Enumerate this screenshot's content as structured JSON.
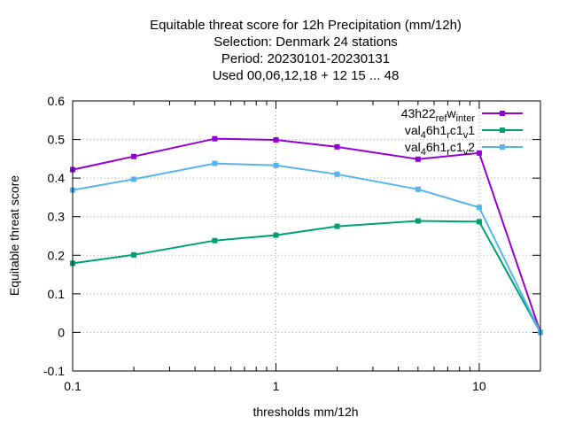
{
  "chart_data": {
    "type": "line",
    "title_lines": [
      "Equitable threat score  for 12h Precipitation (mm/12h)",
      "Selection: Denmark     24 stations",
      "Period: 20230101-20230131",
      "Used  00,06,12,18  + 12 15 ... 48"
    ],
    "xlabel": "thresholds mm/12h",
    "ylabel": "Equitable threat score",
    "x_scale": "log",
    "xlim": [
      0.1,
      20
    ],
    "ylim": [
      -0.1,
      0.6
    ],
    "x_tick_labels": [
      "0.1",
      "1",
      "10"
    ],
    "y_ticks": [
      -0.1,
      0,
      0.1,
      0.2,
      0.3,
      0.4,
      0.5,
      0.6
    ],
    "y_tick_labels": [
      "-0.1",
      "0",
      "0.1",
      "0.2",
      "0.3",
      "0.4",
      "0.5",
      "0.6"
    ],
    "grid": true,
    "legend_position": "top-right",
    "x": [
      0.1,
      0.2,
      0.5,
      1,
      2,
      5,
      10,
      20
    ],
    "series": [
      {
        "name": "43h22_ref_winter",
        "legend_display": [
          "43h22",
          "ref",
          "w",
          "inter"
        ],
        "color": "#9400d3",
        "values": [
          0.422,
          0.456,
          0.502,
          0.499,
          0.481,
          0.449,
          0.465,
          0.0
        ]
      },
      {
        "name": "val_46h1_rc1_v1",
        "legend_display": [
          "val",
          "4",
          "6h1",
          "r",
          "c1",
          "v",
          "1"
        ],
        "color": "#009e73",
        "values": [
          0.179,
          0.201,
          0.238,
          0.252,
          0.275,
          0.289,
          0.287,
          0.0
        ]
      },
      {
        "name": "val_46h1_rc1_v2",
        "legend_display": [
          "val",
          "4",
          "6h1",
          "r",
          "c1",
          "v",
          "2"
        ],
        "color": "#56b4e9",
        "values": [
          0.369,
          0.397,
          0.438,
          0.433,
          0.41,
          0.371,
          0.324,
          0.0
        ]
      }
    ]
  }
}
